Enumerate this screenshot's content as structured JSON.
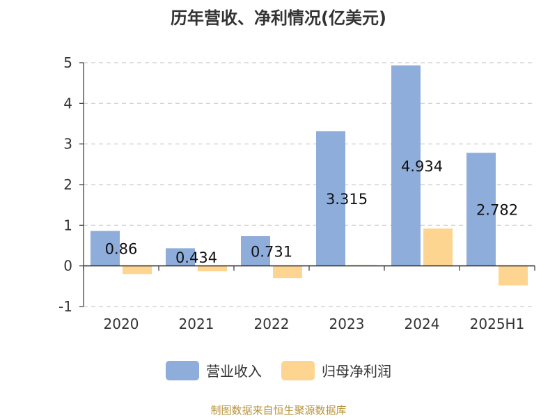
{
  "chart_data": {
    "type": "bar",
    "title": "历年营收、净利情况(亿美元)",
    "categories": [
      "2020",
      "2021",
      "2022",
      "2023",
      "2024",
      "2025H1"
    ],
    "series": [
      {
        "name": "营业收入",
        "values": [
          0.86,
          0.434,
          0.731,
          3.315,
          4.934,
          2.782
        ],
        "color": "#8eaddb",
        "labels": [
          "0.86",
          "0.434",
          "0.731",
          "3.315",
          "4.934",
          "2.782"
        ]
      },
      {
        "name": "归母净利润",
        "values": [
          -0.2,
          -0.13,
          -0.3,
          0.02,
          0.92,
          -0.48
        ],
        "color": "#fdd590"
      }
    ],
    "ylim": [
      -1,
      5
    ],
    "yticks": [
      -1,
      0,
      1,
      2,
      3,
      4,
      5
    ],
    "grid": true,
    "legend_position": "bottom"
  },
  "footer": {
    "source": "制图数据来自恒生聚源数据库"
  }
}
